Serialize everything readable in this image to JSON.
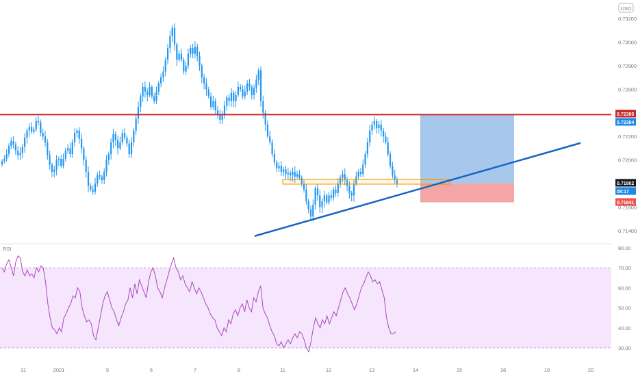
{
  "currency_badge": "USD",
  "rsi_label": "RSI",
  "colors": {
    "candle": "#2196f3",
    "resistance": "#c62828",
    "trendline": "#1565c0",
    "zone_border": "#ef8f00",
    "target_zone": "#a7c8ec",
    "stop_zone": "#f4a5a5",
    "rsi_line": "#ab47bc",
    "rsi_band": "#f5e6fd",
    "price_tag_red": "#c62828",
    "price_tag_blue": "#1e88e5",
    "price_tag_black": "#131722",
    "price_tag_pink": "#ef5350",
    "axis_text": "#787b86"
  },
  "chart_data": [
    {
      "type": "candlestick",
      "price_axis": {
        "ticks": [
          "0.73200",
          "0.73000",
          "0.72800",
          "0.72600",
          "0.72200",
          "0.72000",
          "0.71600",
          "0.71400"
        ]
      },
      "time_axis": {
        "ticks": [
          "31",
          "2021",
          "5",
          "6",
          "7",
          "8",
          "11",
          "12",
          "13",
          "14",
          "15",
          "18",
          "19",
          "20"
        ]
      },
      "price_tags": [
        {
          "name": "resistance",
          "label": "0.72385",
          "price": 0.72385,
          "color": "#c62828"
        },
        {
          "name": "target",
          "label": "0.72384",
          "price": 0.72384,
          "color": "#1e88e5"
        },
        {
          "name": "last-price",
          "label": "0.71802",
          "price": 0.71802,
          "color": "#131722"
        },
        {
          "name": "countdown",
          "label": "08:17",
          "price": 0.71713,
          "color": "#1e88e5"
        },
        {
          "name": "stop",
          "label": "0.71641",
          "price": 0.71641,
          "color": "#ef5350"
        }
      ],
      "resistance_level": 0.72385,
      "support_zone": {
        "top": 0.71835,
        "bottom": 0.71795
      },
      "trendline": {
        "from": {
          "x": 372,
          "price": 0.71355
        },
        "to": {
          "x": 848,
          "price": 0.72144
        }
      },
      "position": {
        "entry": 0.71802,
        "target": 0.72384,
        "stop": 0.71641,
        "x_start": 614,
        "x_end": 751
      },
      "close_series": [
        0.7199,
        0.7201,
        0.7205,
        0.7212,
        0.7216,
        0.7213,
        0.7208,
        0.7204,
        0.7206,
        0.7211,
        0.7219,
        0.7225,
        0.7228,
        0.7224,
        0.7226,
        0.7233,
        0.7232,
        0.7223,
        0.722,
        0.7215,
        0.7204,
        0.7196,
        0.719,
        0.7192,
        0.72,
        0.7201,
        0.7195,
        0.7201,
        0.7208,
        0.721,
        0.7205,
        0.7215,
        0.7223,
        0.7225,
        0.7218,
        0.721,
        0.72,
        0.719,
        0.7178,
        0.7175,
        0.7173,
        0.718,
        0.7187,
        0.7186,
        0.7183,
        0.719,
        0.72,
        0.7205,
        0.7215,
        0.7222,
        0.7217,
        0.721,
        0.7215,
        0.7223,
        0.7219,
        0.7214,
        0.7205,
        0.7215,
        0.7225,
        0.7235,
        0.7245,
        0.7254,
        0.7262,
        0.7258,
        0.7255,
        0.7262,
        0.7254,
        0.725,
        0.7258,
        0.7265,
        0.727,
        0.7275,
        0.7285,
        0.7295,
        0.7305,
        0.7312,
        0.7298,
        0.7285,
        0.729,
        0.7285,
        0.7275,
        0.728,
        0.729,
        0.7295,
        0.729,
        0.7296,
        0.7288,
        0.728,
        0.727,
        0.7265,
        0.726,
        0.7254,
        0.7245,
        0.725,
        0.7242,
        0.7238,
        0.7234,
        0.7239,
        0.7246,
        0.7253,
        0.725,
        0.7257,
        0.725,
        0.7255,
        0.7262,
        0.726,
        0.7254,
        0.7258,
        0.7265,
        0.7262,
        0.7255,
        0.7261,
        0.7268,
        0.7276,
        0.725,
        0.724,
        0.723,
        0.722,
        0.7215,
        0.7205,
        0.7198,
        0.7193,
        0.7195,
        0.719,
        0.7192,
        0.7188,
        0.7189,
        0.7187,
        0.719,
        0.7186,
        0.7188,
        0.7185,
        0.718,
        0.7175,
        0.7165,
        0.7158,
        0.7152,
        0.7162,
        0.7176,
        0.717,
        0.716,
        0.7165,
        0.717,
        0.7164,
        0.717,
        0.7168,
        0.7175,
        0.7172,
        0.718,
        0.7185,
        0.7188,
        0.7183,
        0.7178,
        0.7172,
        0.717,
        0.718,
        0.7186,
        0.719,
        0.7188,
        0.7196,
        0.7205,
        0.7215,
        0.7225,
        0.723,
        0.7233,
        0.7227,
        0.723,
        0.7225,
        0.722,
        0.7215,
        0.7205,
        0.7195,
        0.7187,
        0.7183,
        0.718
      ]
    },
    {
      "type": "line",
      "name": "RSI",
      "y_axis": {
        "ticks": [
          "80.00",
          "70.00",
          "60.00",
          "50.00",
          "40.00",
          "30.00"
        ],
        "band": [
          30,
          70
        ]
      },
      "values": [
        70,
        68,
        72,
        74,
        70,
        66,
        73,
        76,
        75,
        68,
        66,
        69,
        66,
        67,
        65,
        70,
        68,
        71,
        70,
        63,
        52,
        45,
        40,
        39,
        37,
        40,
        38,
        45,
        47,
        50,
        52,
        56,
        55,
        60,
        58,
        50,
        46,
        43,
        44,
        42,
        36,
        34,
        40,
        46,
        52,
        56,
        58,
        54,
        50,
        48,
        44,
        41,
        45,
        48,
        52,
        54,
        60,
        55,
        62,
        57,
        64,
        61,
        58,
        55,
        63,
        68,
        70,
        66,
        60,
        58,
        55,
        60,
        64,
        68,
        72,
        75,
        70,
        68,
        64,
        66,
        62,
        60,
        58,
        63,
        60,
        57,
        60,
        58,
        55,
        52,
        50,
        47,
        45,
        44,
        40,
        38,
        36,
        40,
        38,
        44,
        42,
        47,
        49,
        46,
        50,
        52,
        48,
        54,
        50,
        48,
        55,
        53,
        58,
        61,
        50,
        47,
        45,
        41,
        38,
        36,
        32,
        31,
        33,
        30,
        32,
        34,
        32,
        35,
        37,
        35,
        38,
        37,
        34,
        30,
        28,
        33,
        40,
        45,
        42,
        40,
        44,
        42,
        46,
        42,
        45,
        48,
        46,
        50,
        54,
        58,
        60,
        57,
        55,
        52,
        49,
        52,
        56,
        60,
        62,
        65,
        68,
        66,
        63,
        64,
        62,
        63,
        59,
        55,
        45,
        40,
        37,
        37,
        38
      ]
    }
  ]
}
